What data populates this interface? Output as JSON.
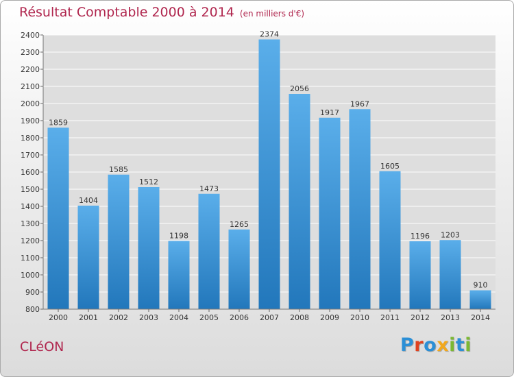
{
  "header": {
    "title": "Résultat Comptable 2000 à 2014",
    "subtitle": "(en milliers d'€)"
  },
  "footer": {
    "commune": "CLéON",
    "logo": {
      "text": "Proxiti",
      "letter_colors": [
        "#2b8fd6",
        "#e0421f",
        "#2b8fd6",
        "#f2a81d",
        "#7bb832",
        "#2b8fd6",
        "#7bb832"
      ]
    }
  },
  "colors": {
    "bar_top": "#5aaeea",
    "bar_bottom": "#2277bb",
    "title": "#b0264e",
    "grid": "#ffffff",
    "plot_bg": "#dedede"
  },
  "chart_data": {
    "type": "bar",
    "title": "Résultat Comptable 2000 à 2014",
    "subtitle": "(en milliers d'€)",
    "xlabel": "",
    "ylabel": "",
    "categories": [
      "2000",
      "2001",
      "2002",
      "2003",
      "2004",
      "2005",
      "2006",
      "2007",
      "2008",
      "2009",
      "2010",
      "2011",
      "2012",
      "2013",
      "2014"
    ],
    "values": [
      1859,
      1404,
      1585,
      1512,
      1198,
      1473,
      1265,
      2374,
      2056,
      1917,
      1967,
      1605,
      1196,
      1203,
      910
    ],
    "ylim": [
      800,
      2400
    ],
    "yticks": [
      800,
      900,
      1000,
      1100,
      1200,
      1300,
      1400,
      1500,
      1600,
      1700,
      1800,
      1900,
      2000,
      2100,
      2200,
      2300,
      2400
    ],
    "grid": true,
    "data_labels": true,
    "legend": "none"
  }
}
